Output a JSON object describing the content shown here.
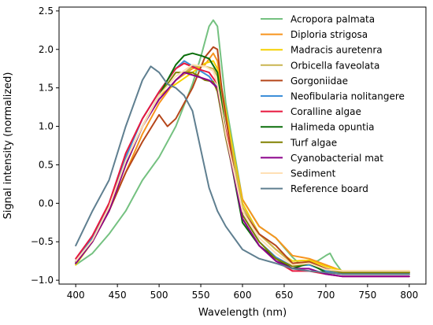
{
  "chart_data": {
    "type": "line",
    "title": "",
    "xlabel": "Wavelength (nm)",
    "ylabel": "Signal intensity (normalized)",
    "xlim": [
      380,
      820
    ],
    "ylim": [
      -1.05,
      2.55
    ],
    "xticks": [
      400,
      450,
      500,
      550,
      600,
      650,
      700,
      750,
      800
    ],
    "yticks": [
      -1.0,
      -0.5,
      0.0,
      0.5,
      1.0,
      1.5,
      2.0,
      2.5
    ],
    "xtick_labels": [
      "400",
      "450",
      "500",
      "550",
      "600",
      "650",
      "700",
      "750",
      "800"
    ],
    "ytick_labels": [
      "−1.0",
      "−0.5",
      "0.0",
      "0.5",
      "1.0",
      "1.5",
      "2.0",
      "2.5"
    ],
    "grid": false,
    "legend_position": "top-right",
    "series": [
      {
        "name": "Acropora palmata",
        "color": "#74c180",
        "x": [
          400,
          420,
          440,
          460,
          480,
          500,
          520,
          540,
          550,
          560,
          565,
          570,
          580,
          600,
          620,
          640,
          660,
          670,
          680,
          690,
          700,
          705,
          710,
          720,
          760,
          800
        ],
        "y": [
          -0.8,
          -0.65,
          -0.4,
          -0.1,
          0.3,
          0.6,
          1.0,
          1.55,
          1.9,
          2.3,
          2.38,
          2.3,
          1.3,
          0.05,
          -0.3,
          -0.45,
          -0.7,
          -0.8,
          -0.75,
          -0.75,
          -0.68,
          -0.65,
          -0.75,
          -0.9,
          -0.9,
          -0.9
        ]
      },
      {
        "name": "Diploria strigosa",
        "color": "#f7941d",
        "x": [
          400,
          420,
          440,
          460,
          480,
          500,
          520,
          540,
          555,
          565,
          570,
          575,
          590,
          600,
          620,
          640,
          660,
          680,
          700,
          720,
          760,
          800
        ],
        "y": [
          -0.75,
          -0.5,
          -0.1,
          0.4,
          0.9,
          1.3,
          1.6,
          1.75,
          1.8,
          1.95,
          1.85,
          1.5,
          0.6,
          0.05,
          -0.3,
          -0.45,
          -0.68,
          -0.72,
          -0.8,
          -0.88,
          -0.88,
          -0.88
        ]
      },
      {
        "name": "Madracis auretenra",
        "color": "#f5d000",
        "x": [
          400,
          420,
          440,
          460,
          480,
          500,
          520,
          540,
          555,
          565,
          570,
          580,
          600,
          620,
          640,
          660,
          680,
          700,
          720,
          760,
          800
        ],
        "y": [
          -0.8,
          -0.5,
          -0.1,
          0.5,
          1.0,
          1.4,
          1.55,
          1.7,
          1.82,
          1.85,
          1.75,
          1.2,
          0.0,
          -0.4,
          -0.6,
          -0.75,
          -0.74,
          -0.82,
          -0.88,
          -0.88,
          -0.88
        ]
      },
      {
        "name": "Orbicella faveolata",
        "color": "#c9b550",
        "x": [
          400,
          420,
          440,
          460,
          480,
          500,
          520,
          540,
          555,
          565,
          570,
          580,
          600,
          620,
          640,
          660,
          680,
          700,
          720,
          760,
          800
        ],
        "y": [
          -0.78,
          -0.5,
          -0.05,
          0.5,
          1.0,
          1.35,
          1.6,
          1.78,
          1.78,
          1.75,
          1.65,
          1.1,
          -0.05,
          -0.4,
          -0.6,
          -0.78,
          -0.76,
          -0.85,
          -0.9,
          -0.9,
          -0.9
        ]
      },
      {
        "name": "Gorgoniidae",
        "color": "#b5461a",
        "x": [
          400,
          420,
          440,
          460,
          480,
          500,
          510,
          520,
          540,
          555,
          565,
          570,
          575,
          590,
          600,
          620,
          640,
          660,
          680,
          700,
          720,
          760,
          800
        ],
        "y": [
          -0.75,
          -0.5,
          -0.1,
          0.4,
          0.8,
          1.15,
          1.0,
          1.1,
          1.5,
          1.9,
          2.03,
          2.0,
          1.5,
          0.4,
          -0.1,
          -0.4,
          -0.55,
          -0.78,
          -0.76,
          -0.85,
          -0.9,
          -0.9,
          -0.9
        ]
      },
      {
        "name": "Neofibularia nolitangere",
        "color": "#3d8fd9",
        "x": [
          400,
          420,
          440,
          460,
          480,
          500,
          520,
          530,
          545,
          560,
          570,
          580,
          600,
          620,
          640,
          660,
          680,
          700,
          720,
          760,
          800
        ],
        "y": [
          -0.75,
          -0.45,
          0.0,
          0.6,
          1.1,
          1.45,
          1.75,
          1.85,
          1.75,
          1.65,
          1.5,
          0.9,
          -0.15,
          -0.5,
          -0.7,
          -0.82,
          -0.8,
          -0.88,
          -0.92,
          -0.92,
          -0.92
        ]
      },
      {
        "name": "Coralline algae",
        "color": "#e8173e",
        "x": [
          400,
          420,
          440,
          460,
          480,
          500,
          520,
          530,
          545,
          560,
          570,
          580,
          600,
          620,
          640,
          660,
          680,
          700,
          720,
          760,
          800
        ],
        "y": [
          -0.72,
          -0.42,
          0.0,
          0.65,
          1.1,
          1.45,
          1.75,
          1.82,
          1.75,
          1.7,
          1.55,
          0.95,
          -0.2,
          -0.55,
          -0.75,
          -0.88,
          -0.88,
          -0.92,
          -0.95,
          -0.95,
          -0.95
        ]
      },
      {
        "name": "Halimeda opuntia",
        "color": "#0a6e0a",
        "x": [
          400,
          420,
          440,
          460,
          480,
          500,
          520,
          530,
          540,
          550,
          560,
          570,
          580,
          600,
          620,
          640,
          660,
          680,
          700,
          720,
          760,
          800
        ],
        "y": [
          -0.78,
          -0.5,
          -0.05,
          0.5,
          1.0,
          1.4,
          1.8,
          1.92,
          1.95,
          1.92,
          1.88,
          1.7,
          0.9,
          -0.25,
          -0.55,
          -0.72,
          -0.85,
          -0.78,
          -0.9,
          -0.92,
          -0.92,
          -0.92
        ]
      },
      {
        "name": "Turf algae",
        "color": "#808000",
        "x": [
          400,
          420,
          440,
          460,
          480,
          500,
          520,
          540,
          555,
          565,
          570,
          580,
          600,
          620,
          640,
          660,
          680,
          700,
          720,
          760,
          800
        ],
        "y": [
          -0.76,
          -0.48,
          -0.05,
          0.55,
          1.0,
          1.4,
          1.7,
          1.7,
          1.6,
          1.58,
          1.45,
          0.85,
          -0.15,
          -0.5,
          -0.72,
          -0.82,
          -0.78,
          -0.86,
          -0.9,
          -0.9,
          -0.9
        ]
      },
      {
        "name": "Cyanobacterial mat",
        "color": "#8b008b",
        "x": [
          400,
          420,
          440,
          460,
          480,
          500,
          520,
          530,
          545,
          560,
          570,
          580,
          600,
          620,
          640,
          660,
          680,
          700,
          720,
          760,
          800
        ],
        "y": [
          -0.78,
          -0.5,
          -0.1,
          0.5,
          1.0,
          1.35,
          1.6,
          1.7,
          1.65,
          1.6,
          1.5,
          0.9,
          -0.2,
          -0.55,
          -0.75,
          -0.85,
          -0.85,
          -0.92,
          -0.95,
          -0.95,
          -0.95
        ]
      },
      {
        "name": "Sediment",
        "color": "#ffe0b5",
        "x": [
          400,
          420,
          440,
          460,
          480,
          500,
          520,
          540,
          555,
          565,
          570,
          580,
          600,
          620,
          640,
          660,
          680,
          700,
          720,
          760,
          800
        ],
        "y": [
          -0.75,
          -0.48,
          -0.05,
          0.55,
          1.0,
          1.4,
          1.65,
          1.8,
          1.78,
          1.72,
          1.55,
          0.9,
          -0.1,
          -0.45,
          -0.65,
          -0.8,
          -0.78,
          -0.86,
          -0.88,
          -0.88,
          -0.88
        ]
      },
      {
        "name": "Reference board",
        "color": "#5f7f90",
        "x": [
          400,
          420,
          440,
          460,
          480,
          490,
          500,
          510,
          520,
          530,
          540,
          550,
          560,
          570,
          580,
          600,
          620,
          640,
          660,
          680,
          700,
          720,
          760,
          800
        ],
        "y": [
          -0.55,
          -0.1,
          0.3,
          1.0,
          1.6,
          1.78,
          1.7,
          1.55,
          1.5,
          1.4,
          1.2,
          0.7,
          0.2,
          -0.1,
          -0.3,
          -0.6,
          -0.72,
          -0.78,
          -0.85,
          -0.88,
          -0.9,
          -0.92,
          -0.92,
          -0.92
        ]
      }
    ]
  }
}
